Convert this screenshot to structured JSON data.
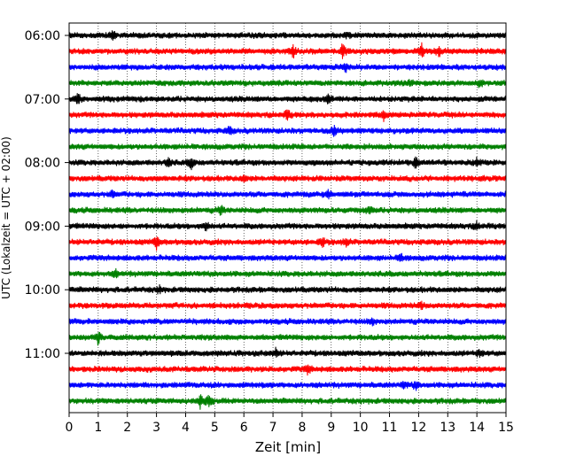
{
  "chart_data": {
    "type": "line",
    "title": "",
    "xlabel": "Zeit  [min]",
    "ylabel": "UTC (Lokalzeit = UTC + 02:00)",
    "xlim": [
      0,
      15
    ],
    "x_ticks": [
      0,
      1,
      2,
      3,
      4,
      5,
      6,
      7,
      8,
      9,
      10,
      11,
      12,
      13,
      14,
      15
    ],
    "y_tick_labels": [
      "06:00",
      "07:00",
      "08:00",
      "09:00",
      "10:00",
      "11:00"
    ],
    "y_tick_rows": [
      0,
      4,
      8,
      12,
      16,
      20
    ],
    "grid": "vertical dotted at each minute",
    "legend": "none",
    "trace_colors": [
      "#000000",
      "#ff0000",
      "#0000ff",
      "#008000"
    ],
    "traces": [
      {
        "start": "06:00",
        "events": [
          {
            "x": 1.5,
            "amp": 0.6
          },
          {
            "x": 9.5,
            "amp": 0.3
          }
        ]
      },
      {
        "start": "06:15",
        "events": [
          {
            "x": 7.7,
            "amp": 0.7
          },
          {
            "x": 9.4,
            "amp": 1.0
          },
          {
            "x": 12.1,
            "amp": 0.9
          },
          {
            "x": 12.7,
            "amp": 0.5
          }
        ]
      },
      {
        "start": "06:30",
        "events": [
          {
            "x": 9.5,
            "amp": 0.6
          }
        ]
      },
      {
        "start": "06:45",
        "events": [
          {
            "x": 11.7,
            "amp": 0.5
          },
          {
            "x": 14.1,
            "amp": 0.5
          }
        ]
      },
      {
        "start": "07:00",
        "events": [
          {
            "x": 0.3,
            "amp": 0.7
          },
          {
            "x": 8.9,
            "amp": 0.5
          }
        ]
      },
      {
        "start": "07:15",
        "events": [
          {
            "x": 7.5,
            "amp": 0.6
          },
          {
            "x": 10.8,
            "amp": 0.5
          }
        ]
      },
      {
        "start": "07:30",
        "events": [
          {
            "x": 5.5,
            "amp": 0.5
          },
          {
            "x": 9.1,
            "amp": 0.6
          }
        ]
      },
      {
        "start": "07:45",
        "events": []
      },
      {
        "start": "08:00",
        "events": [
          {
            "x": 3.4,
            "amp": 0.6
          },
          {
            "x": 4.2,
            "amp": 0.8
          },
          {
            "x": 11.9,
            "amp": 0.7
          },
          {
            "x": 14.0,
            "amp": 0.4
          }
        ]
      },
      {
        "start": "08:15",
        "events": [
          {
            "x": 6.0,
            "amp": 0.4
          }
        ]
      },
      {
        "start": "08:30",
        "events": [
          {
            "x": 1.5,
            "amp": 0.4
          },
          {
            "x": 8.9,
            "amp": 0.5
          }
        ]
      },
      {
        "start": "08:45",
        "events": [
          {
            "x": 5.2,
            "amp": 0.6
          },
          {
            "x": 10.3,
            "amp": 0.5
          }
        ]
      },
      {
        "start": "09:00",
        "events": [
          {
            "x": 4.7,
            "amp": 0.6
          },
          {
            "x": 14.0,
            "amp": 0.4
          }
        ]
      },
      {
        "start": "09:15",
        "events": [
          {
            "x": 3.0,
            "amp": 0.8
          },
          {
            "x": 8.7,
            "amp": 0.6
          },
          {
            "x": 9.5,
            "amp": 0.5
          }
        ]
      },
      {
        "start": "09:30",
        "events": [
          {
            "x": 11.4,
            "amp": 0.5
          }
        ]
      },
      {
        "start": "09:45",
        "events": [
          {
            "x": 1.6,
            "amp": 0.4
          }
        ]
      },
      {
        "start": "10:00",
        "events": [
          {
            "x": 3.1,
            "amp": 0.4
          }
        ]
      },
      {
        "start": "10:15",
        "events": [
          {
            "x": 12.1,
            "amp": 0.4
          }
        ]
      },
      {
        "start": "10:30",
        "events": [
          {
            "x": 10.4,
            "amp": 0.4
          }
        ]
      },
      {
        "start": "10:45",
        "events": [
          {
            "x": 1.0,
            "amp": 0.9
          }
        ]
      },
      {
        "start": "11:00",
        "events": [
          {
            "x": 7.1,
            "amp": 0.5
          },
          {
            "x": 14.1,
            "amp": 0.5
          }
        ]
      },
      {
        "start": "11:15",
        "events": [
          {
            "x": 8.2,
            "amp": 0.6
          }
        ]
      },
      {
        "start": "11:30",
        "events": [
          {
            "x": 11.5,
            "amp": 0.4
          },
          {
            "x": 11.9,
            "amp": 0.5
          }
        ]
      },
      {
        "start": "11:45",
        "events": [
          {
            "x": 4.5,
            "amp": 0.8
          },
          {
            "x": 4.8,
            "amp": 0.7
          }
        ]
      }
    ]
  }
}
